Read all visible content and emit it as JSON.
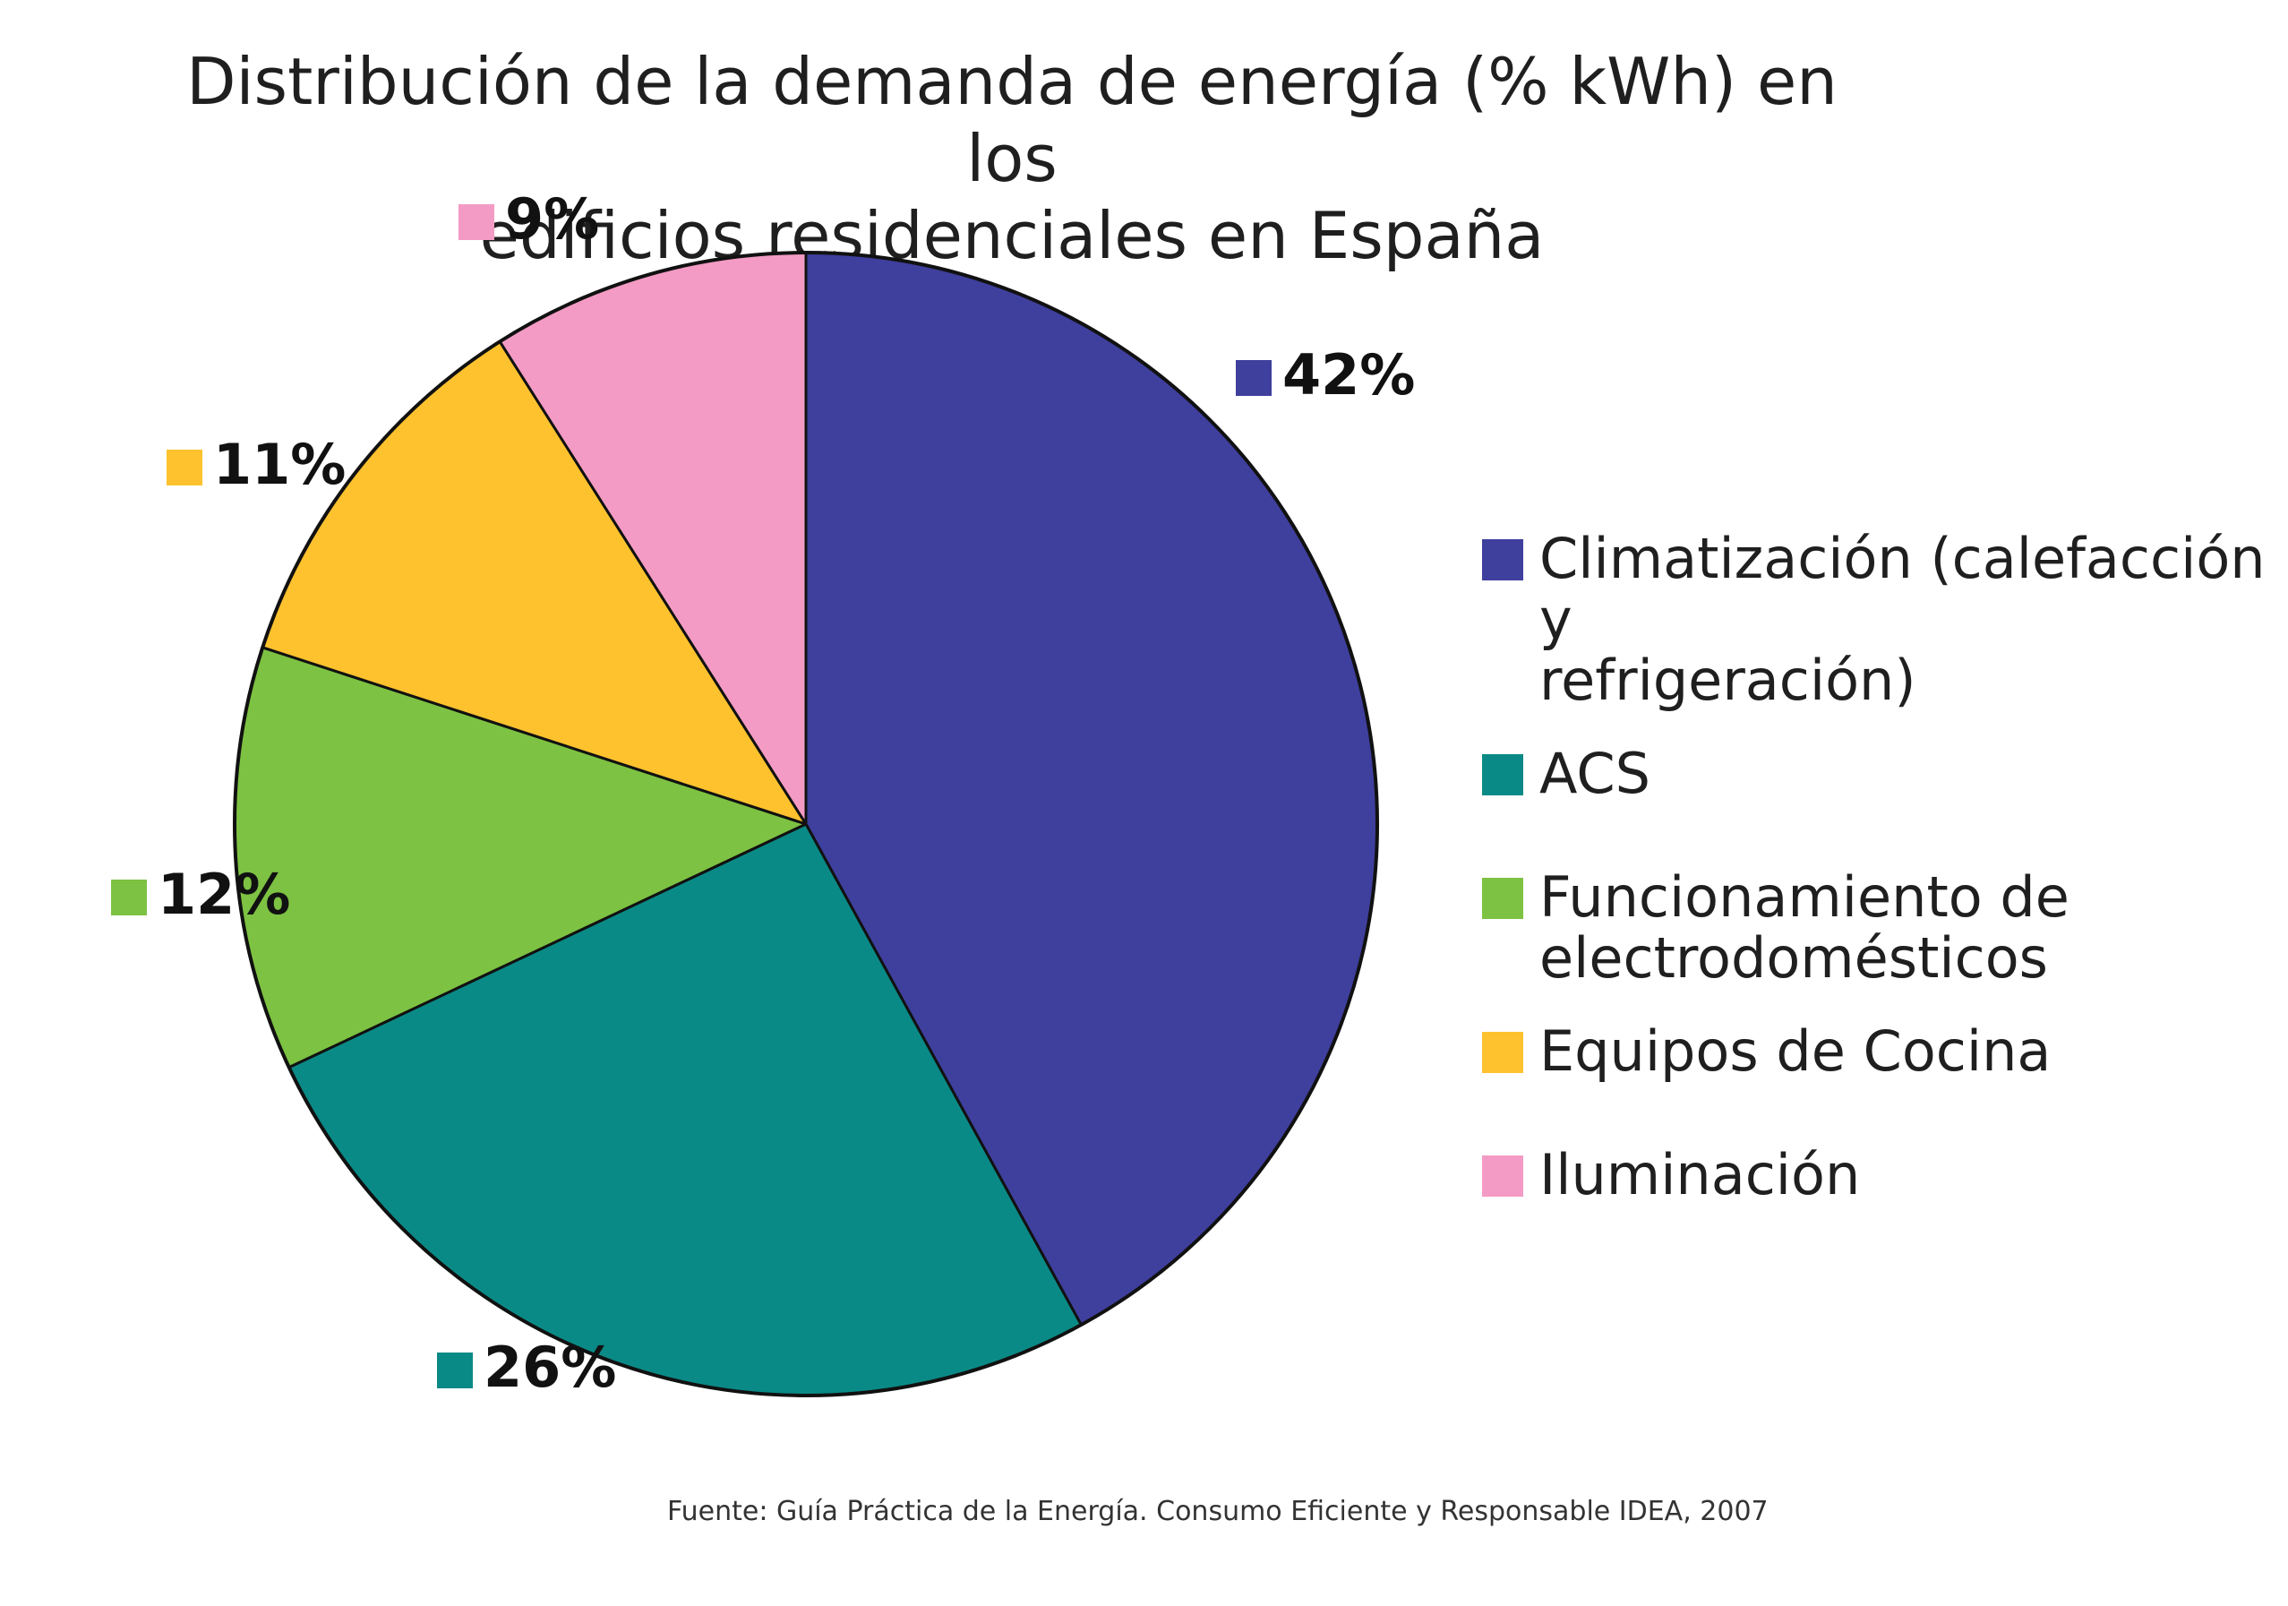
{
  "chart_data": {
    "type": "pie",
    "title_lines": [
      "Distribución de la demanda de energía (% kWh) en los",
      "edificios residenciales en España"
    ],
    "slices": [
      {
        "label": "Climatización (calefacción y refrigeración)",
        "value": 42,
        "display": "42%",
        "color": "#3f3f9e"
      },
      {
        "label": "ACS",
        "value": 26,
        "display": "26%",
        "color": "#0a8a86"
      },
      {
        "label": "Funcionamiento de electrodomésticos",
        "value": 12,
        "display": "12%",
        "color": "#7dc242"
      },
      {
        "label": "Equipos de Cocina",
        "value": 11,
        "display": "11%",
        "color": "#fdc22e"
      },
      {
        "label": "Iluminación",
        "value": 9,
        "display": "9%",
        "color": "#f39bc4"
      }
    ],
    "legend": [
      {
        "lines": [
          "Climatización (calefacción y",
          "refrigeración)"
        ],
        "color": "#3f3f9e"
      },
      {
        "lines": [
          "ACS"
        ],
        "color": "#0a8a86"
      },
      {
        "lines": [
          "Funcionamiento de",
          "electrodomésticos"
        ],
        "color": "#7dc242"
      },
      {
        "lines": [
          "Equipos de Cocina"
        ],
        "color": "#fdc22e"
      },
      {
        "lines": [
          "Iluminación"
        ],
        "color": "#f39bc4"
      }
    ],
    "legend_position": "right",
    "source": "Fuente: Guía Práctica de la Energía. Consumo Eficiente y Responsable IDEA, 2007"
  }
}
